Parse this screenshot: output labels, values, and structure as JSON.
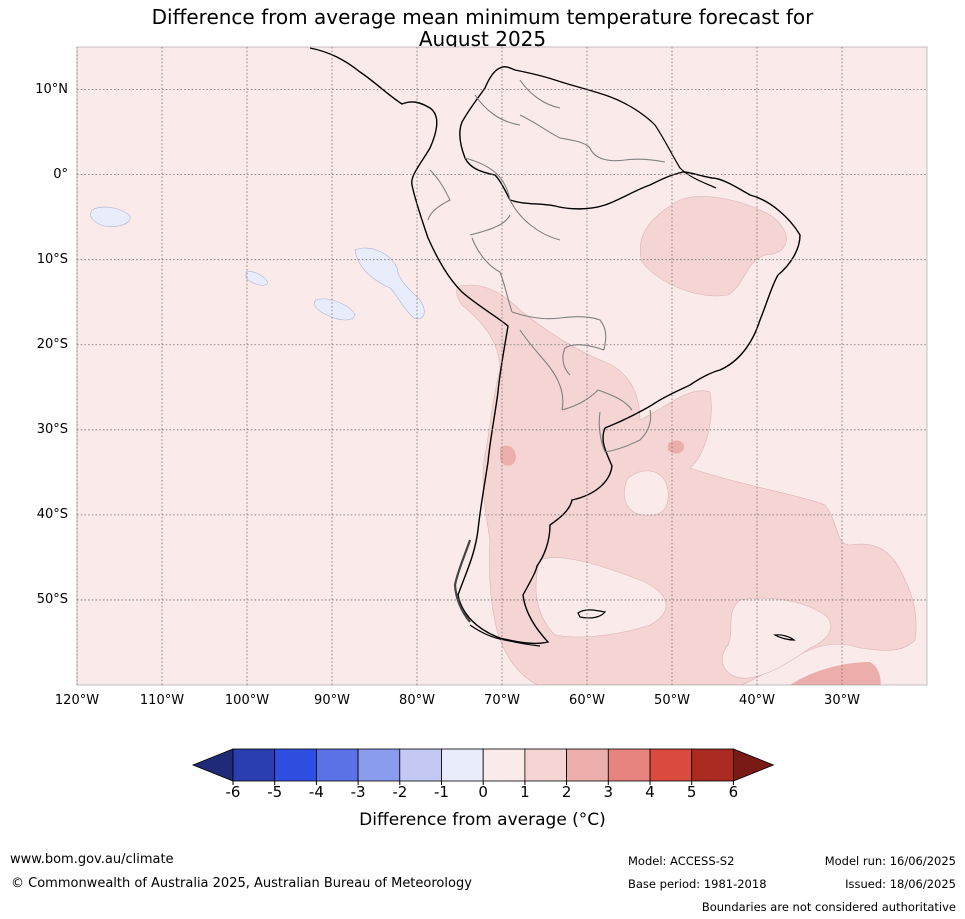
{
  "title": {
    "line1": "Difference from average mean minimum temperature forecast for",
    "line2": "August 2025"
  },
  "map": {
    "lat_labels": [
      "10°N",
      "0°",
      "10°S",
      "20°S",
      "30°S",
      "40°S",
      "50°S"
    ],
    "lon_labels": [
      "120°W",
      "110°W",
      "100°W",
      "90°W",
      "80°W",
      "70°W",
      "60°W",
      "50°W",
      "40°W",
      "30°W"
    ],
    "extent": {
      "lon_min": -120,
      "lon_max": -20,
      "lat_min": -60,
      "lat_max": 15
    },
    "grid": true
  },
  "colorbar": {
    "ticks": [
      "-6",
      "-5",
      "-4",
      "-3",
      "-2",
      "-1",
      "0",
      "1",
      "2",
      "3",
      "4",
      "5",
      "6"
    ],
    "colors": [
      "#1f2a78",
      "#2a3db1",
      "#2f4fe3",
      "#5a72e6",
      "#8a9ced",
      "#c3c9f3",
      "#e9ecfb",
      "#fbeaea",
      "#f5d4d4",
      "#ecaeab",
      "#e8847f",
      "#da4a3e",
      "#ab2a22",
      "#7a1a16"
    ],
    "label": "Difference from average (°C)"
  },
  "footer": {
    "url": "www.bom.gov.au/climate",
    "copyright": "© Commonwealth of Australia 2025, Australian Bureau of Meteorology",
    "model": "Model: ACCESS-S2",
    "base_period": "Base period: 1981-2018",
    "model_run": "Model run: 16/06/2025",
    "issued": "Issued: 18/06/2025",
    "disclaimer": "Boundaries are not considered authoritative"
  }
}
